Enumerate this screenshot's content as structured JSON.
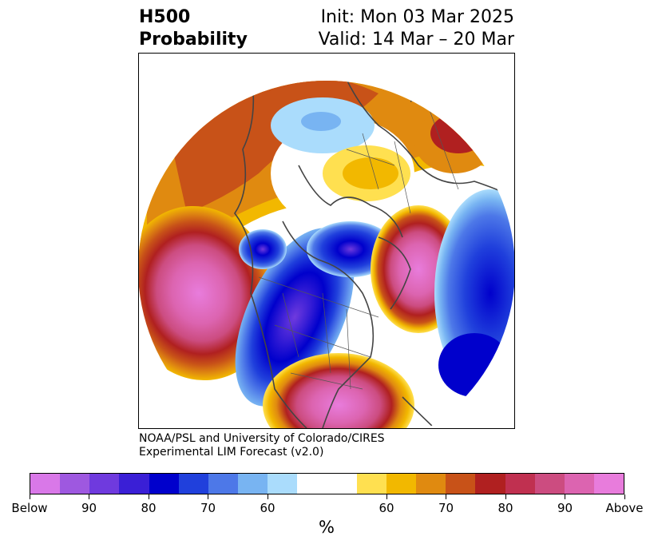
{
  "title": {
    "left_line1": "H500",
    "left_line2": "Probability",
    "right_line1": "Init: Mon 03 Mar 2025",
    "right_line2": "Valid: 14 Mar – 20 Mar"
  },
  "credit": {
    "line1": "NOAA/PSL and University of Colorado/CIRES",
    "line2": "Experimental LIM Forecast (v2.0)"
  },
  "colorbar": {
    "unit": "%",
    "colors": [
      "#d978e8",
      "#9e58e0",
      "#6f3ade",
      "#3a1fd6",
      "#0000cc",
      "#2040dc",
      "#4d78e8",
      "#78b4f2",
      "#aadcfc",
      "#ffffff",
      "#ffffff",
      "#ffe050",
      "#f2b800",
      "#e08a10",
      "#c85218",
      "#b02020",
      "#c03050",
      "#cc4c80",
      "#dc64b0",
      "#e87cdc"
    ],
    "tick_labels": [
      "Below",
      "90",
      "80",
      "70",
      "60",
      "60",
      "70",
      "80",
      "90",
      "Above"
    ]
  },
  "map": {
    "projection": "north-polar-stereographic",
    "features": [
      "coastlines",
      "country-borders",
      "state-borders"
    ],
    "anomaly_centers": [
      {
        "label": "above-max",
        "region": "central-north-pacific",
        "category": "Above"
      },
      {
        "label": "above",
        "region": "southeastern-united-states",
        "category": "80"
      },
      {
        "label": "above",
        "region": "north-atlantic-greenland-east",
        "category": "Above"
      },
      {
        "label": "above",
        "region": "siberia-east-asia",
        "category": "80"
      },
      {
        "label": "below-max",
        "region": "western-north-america",
        "category": "90"
      },
      {
        "label": "below",
        "region": "hudson-bay-canada",
        "category": "90"
      },
      {
        "label": "below",
        "region": "western-europe-mid-atlantic",
        "category": "80"
      }
    ]
  }
}
